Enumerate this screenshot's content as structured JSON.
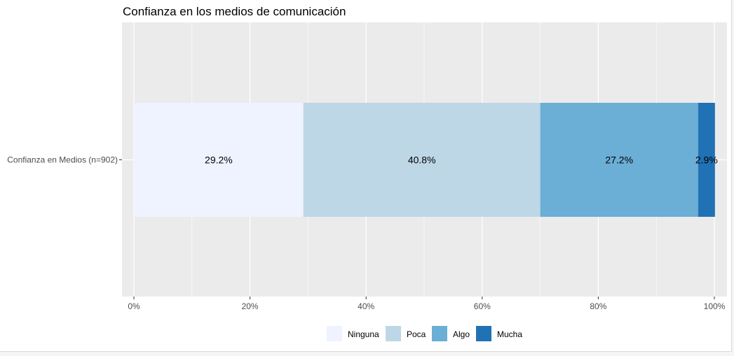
{
  "chart_data": {
    "type": "bar",
    "orientation": "horizontal",
    "stacked": true,
    "title": "Confianza en los medios de comunicación",
    "categories": [
      "Confianza en Medios (n=902)"
    ],
    "series": [
      {
        "name": "Ninguna",
        "values": [
          29.2
        ],
        "label": "29.2%",
        "color": "#eff3ff"
      },
      {
        "name": "Poca",
        "values": [
          40.8
        ],
        "label": "40.8%",
        "color": "#bdd7e7"
      },
      {
        "name": "Algo",
        "values": [
          27.2
        ],
        "label": "27.2%",
        "color": "#6baed6"
      },
      {
        "name": "Mucha",
        "values": [
          2.9
        ],
        "label": "2.9%",
        "color": "#2171b5"
      }
    ],
    "xlim": [
      0,
      100
    ],
    "xticks": [
      0,
      20,
      40,
      60,
      80,
      100
    ],
    "xtick_labels": [
      "0%",
      "20%",
      "40%",
      "60%",
      "80%",
      "100%"
    ],
    "xlabel": "",
    "ylabel": "",
    "grid": true,
    "legend_position": "bottom",
    "panel_background": "#ebebeb",
    "gridline_color": "#ffffff"
  }
}
